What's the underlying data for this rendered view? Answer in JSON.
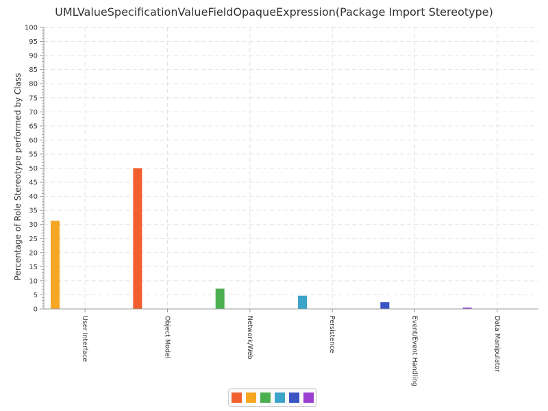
{
  "chart_data": {
    "type": "bar",
    "title": "UMLValueSpecificationValueFieldOpaqueExpression(Package Import Stereotype)",
    "xlabel": "",
    "ylabel": "Percentage of Role Stereotype performed by Class",
    "ylim": [
      0,
      100
    ],
    "yticks": [
      0,
      5,
      10,
      15,
      20,
      25,
      30,
      35,
      40,
      45,
      50,
      55,
      60,
      65,
      70,
      75,
      80,
      85,
      90,
      95,
      100
    ],
    "grid": true,
    "categories": [
      "User Interface",
      "Object Model",
      "Network/Web",
      "Persistence",
      "Event/Event Handling",
      "Data Manipulator"
    ],
    "values": [
      31.3,
      50.0,
      7.2,
      4.7,
      2.4,
      0.5
    ],
    "colors": [
      "#f5a623",
      "#f25f2e",
      "#4caf50",
      "#3ca3c9",
      "#3a54c4",
      "#9b3fd1"
    ],
    "legend_colors": [
      "#f25f2e",
      "#f5a623",
      "#4caf50",
      "#3ca3c9",
      "#3a54c4",
      "#9b3fd1"
    ],
    "legend_position": "bottom-center"
  }
}
